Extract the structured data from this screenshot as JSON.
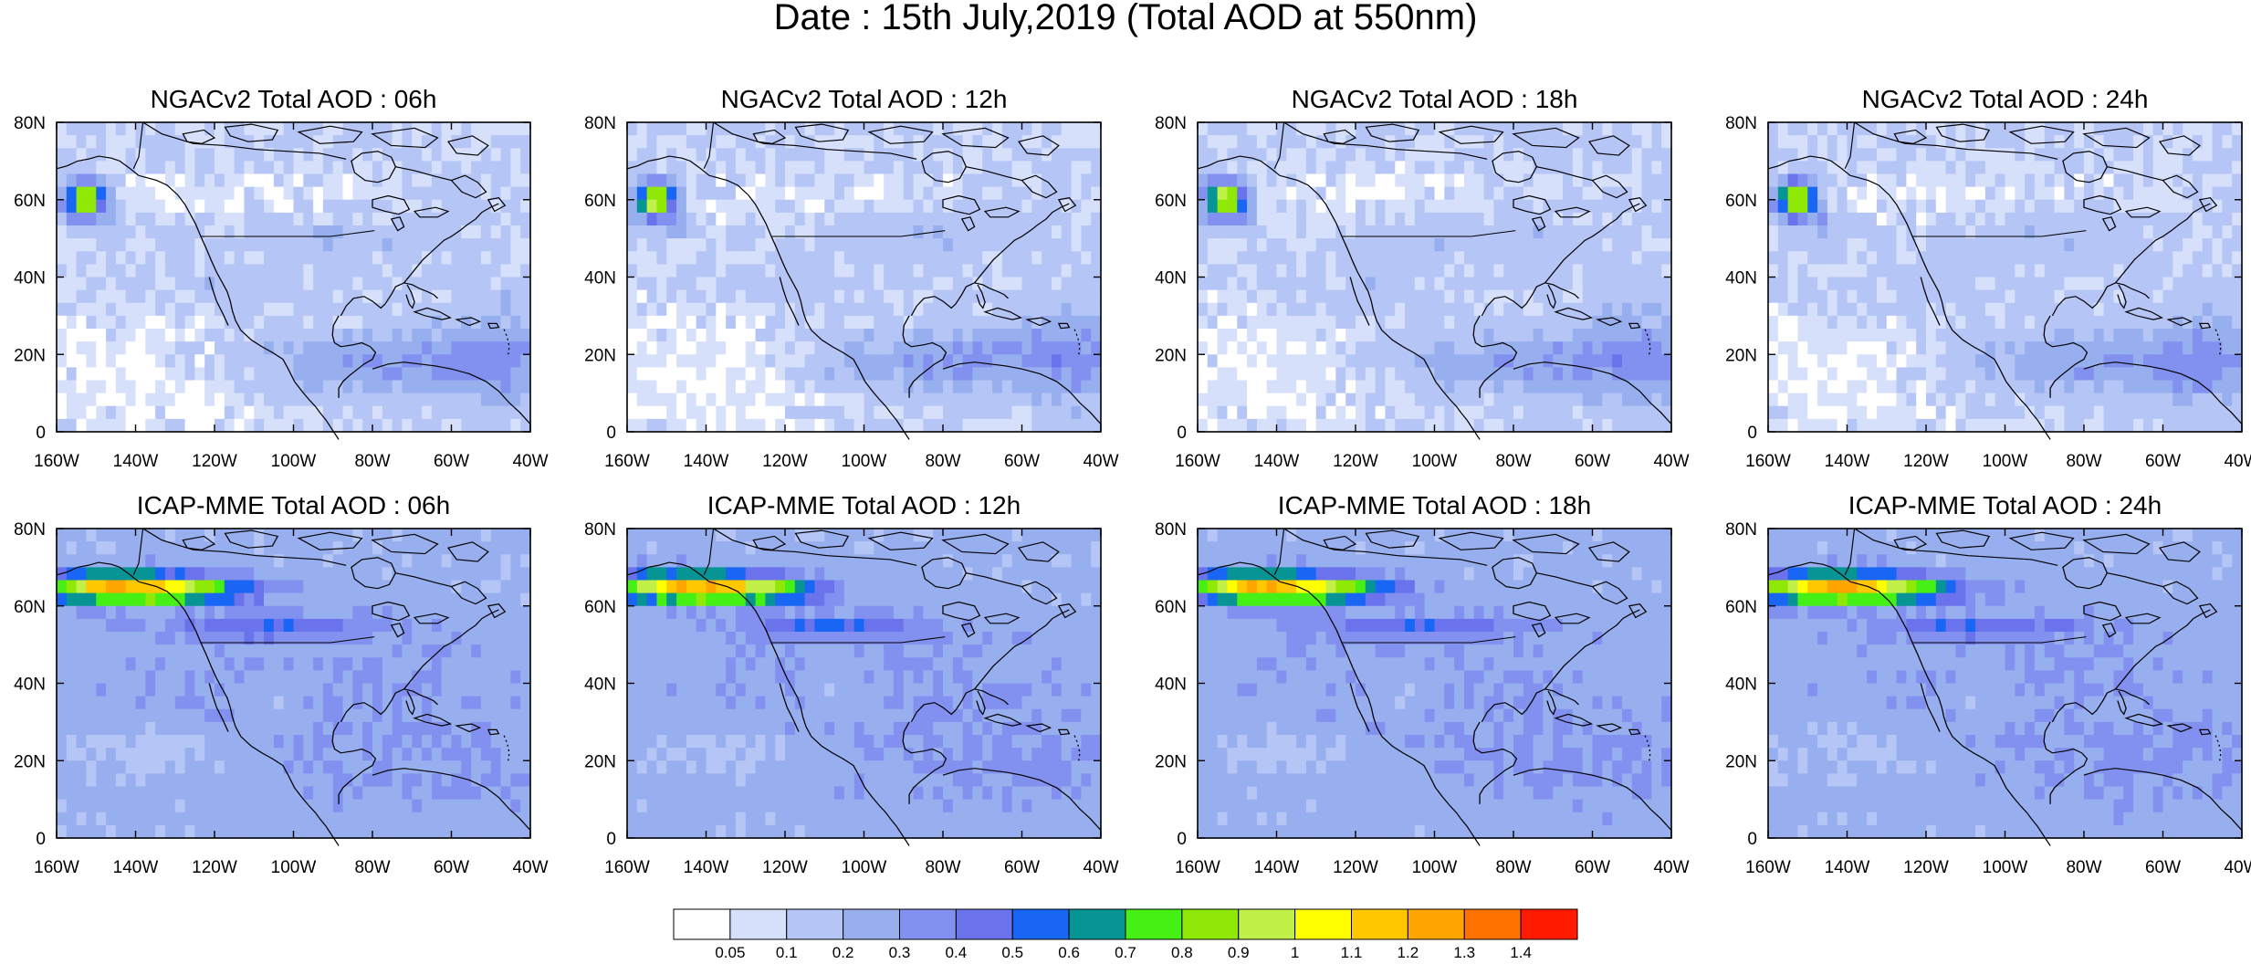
{
  "title": "Date : 15th July,2019 (Total AOD at 550nm)",
  "x_ticks": [
    "160W",
    "140W",
    "120W",
    "100W",
    "80W",
    "60W",
    "40W"
  ],
  "y_ticks": [
    "80N",
    "60N",
    "40N",
    "20N",
    "0"
  ],
  "panels": [
    {
      "title": "NGACv2 Total AOD : 06h",
      "model": "NGACv2",
      "lead": "06h"
    },
    {
      "title": "NGACv2 Total AOD : 12h",
      "model": "NGACv2",
      "lead": "12h"
    },
    {
      "title": "NGACv2 Total AOD : 18h",
      "model": "NGACv2",
      "lead": "18h"
    },
    {
      "title": "NGACv2 Total AOD : 24h",
      "model": "NGACv2",
      "lead": "24h"
    },
    {
      "title": "ICAP-MME Total AOD : 06h",
      "model": "ICAP-MME",
      "lead": "06h"
    },
    {
      "title": "ICAP-MME Total AOD : 12h",
      "model": "ICAP-MME",
      "lead": "12h"
    },
    {
      "title": "ICAP-MME Total AOD : 18h",
      "model": "ICAP-MME",
      "lead": "18h"
    },
    {
      "title": "ICAP-MME Total AOD : 24h",
      "model": "ICAP-MME",
      "lead": "24h"
    }
  ],
  "colorbar": {
    "labels": [
      "0.05",
      "0.1",
      "0.2",
      "0.3",
      "0.4",
      "0.5",
      "0.6",
      "0.7",
      "0.8",
      "0.9",
      "1",
      "1.1",
      "1.2",
      "1.3",
      "1.4"
    ],
    "colors": [
      "#ffffff",
      "#d6e0fb",
      "#b5c5f6",
      "#98afef",
      "#8291f0",
      "#6a72ec",
      "#1a66f4",
      "#069594",
      "#46f014",
      "#8fe805",
      "#c1f049",
      "#ffff00",
      "#ffc700",
      "#ffa500",
      "#ff7200",
      "#ff1a00"
    ]
  },
  "map": {
    "background_color": "#ffffff",
    "land_outline_color": "#000000"
  }
}
